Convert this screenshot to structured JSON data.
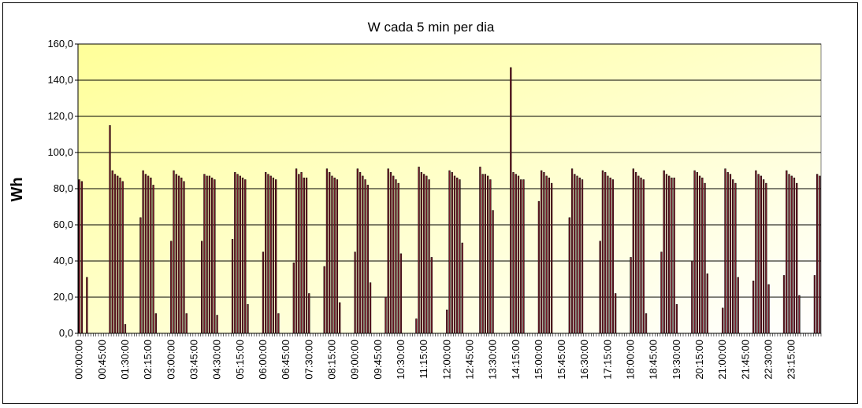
{
  "chart_data": {
    "type": "bar",
    "title": "W cada 5 min per dia",
    "ylabel": "Wh",
    "xlabel": "",
    "ylim": [
      0,
      160
    ],
    "yticks": [
      "0,0",
      "20,0",
      "40,0",
      "60,0",
      "80,0",
      "100,0",
      "120,0",
      "140,0",
      "160,0"
    ],
    "grid": true,
    "legend": "none",
    "interval_minutes": 5,
    "xtick_labels": [
      "00:00:00",
      "00:45:00",
      "01:30:00",
      "02:15:00",
      "03:00:00",
      "03:45:00",
      "04:30:00",
      "05:15:00",
      "06:00:00",
      "06:45:00",
      "07:30:00",
      "08:15:00",
      "09:00:00",
      "09:45:00",
      "10:30:00",
      "11:15:00",
      "12:00:00",
      "12:45:00",
      "13:30:00",
      "14:15:00",
      "15:00:00",
      "15:45:00",
      "16:30:00",
      "17:15:00",
      "18:00:00",
      "18:45:00",
      "19:30:00",
      "20:15:00",
      "21:00:00",
      "21:45:00",
      "22:30:00",
      "23:15:00"
    ],
    "values": [
      85,
      84,
      0,
      31,
      0,
      0,
      0,
      0,
      0,
      0,
      0,
      0,
      115,
      90,
      88,
      87,
      86,
      84,
      5,
      0,
      0,
      0,
      0,
      0,
      64,
      90,
      88,
      87,
      86,
      82,
      11,
      0,
      0,
      0,
      0,
      0,
      51,
      90,
      88,
      87,
      86,
      84,
      11,
      0,
      0,
      0,
      0,
      0,
      51,
      88,
      87,
      87,
      86,
      85,
      10,
      0,
      0,
      0,
      0,
      0,
      52,
      89,
      88,
      87,
      86,
      85,
      16,
      0,
      0,
      0,
      0,
      0,
      45,
      89,
      88,
      87,
      86,
      85,
      11,
      0,
      0,
      0,
      0,
      0,
      39,
      91,
      88,
      89,
      86,
      86,
      22,
      0,
      0,
      0,
      0,
      0,
      37,
      91,
      89,
      87,
      86,
      85,
      17,
      0,
      0,
      0,
      0,
      0,
      45,
      91,
      89,
      87,
      85,
      82,
      28,
      0,
      0,
      0,
      0,
      0,
      20,
      91,
      89,
      87,
      85,
      83,
      44,
      0,
      0,
      0,
      0,
      0,
      8,
      92,
      89,
      88,
      87,
      85,
      42,
      0,
      0,
      0,
      0,
      0,
      13,
      90,
      89,
      87,
      86,
      85,
      50,
      0,
      0,
      0,
      0,
      0,
      0,
      92,
      88,
      88,
      87,
      85,
      68,
      0,
      0,
      0,
      0,
      0,
      0,
      147,
      89,
      88,
      87,
      85,
      85,
      0,
      0,
      0,
      0,
      0,
      73,
      90,
      89,
      87,
      86,
      83,
      0,
      0,
      0,
      0,
      0,
      0,
      64,
      91,
      88,
      87,
      86,
      85,
      0,
      0,
      0,
      0,
      0,
      0,
      51,
      90,
      89,
      87,
      86,
      85,
      22,
      0,
      0,
      0,
      0,
      0,
      42,
      91,
      89,
      87,
      86,
      85,
      11,
      0,
      0,
      0,
      0,
      0,
      45,
      90,
      88,
      87,
      86,
      86,
      16,
      0,
      0,
      0,
      0,
      0,
      40,
      90,
      89,
      87,
      86,
      83,
      33,
      0,
      0,
      0,
      0,
      0,
      14,
      91,
      89,
      88,
      85,
      83,
      31,
      0,
      0,
      0,
      0,
      0,
      29,
      90,
      88,
      87,
      85,
      83,
      27,
      0,
      0,
      0,
      0,
      0,
      32,
      90,
      88,
      87,
      86,
      83,
      21,
      0,
      0,
      0,
      0,
      0,
      32,
      88,
      87
    ]
  },
  "colors": {
    "bar_fill": "#7a1a2a",
    "bar_stroke": "#000000",
    "plot_bg_start": "#ffff99",
    "plot_bg_end": "#ffffff",
    "grid": "#000000"
  }
}
